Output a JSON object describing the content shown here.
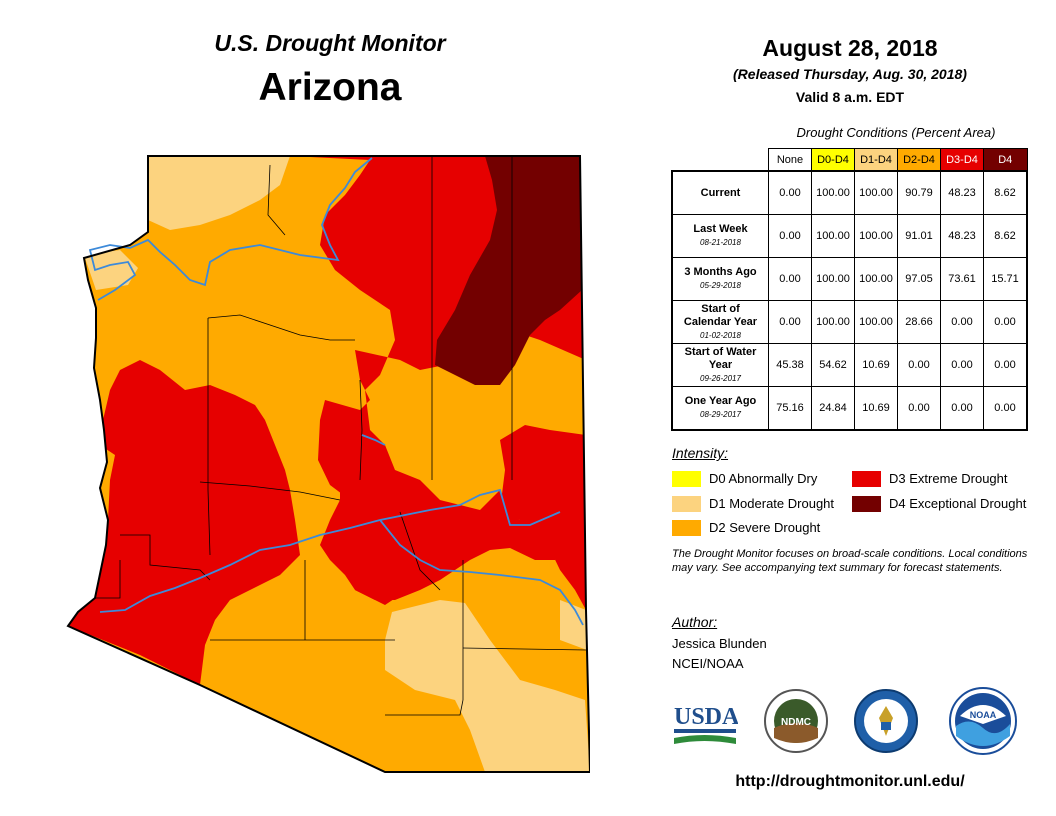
{
  "header": {
    "title": "U.S. Drought Monitor",
    "state": "Arizona",
    "date": "August 28, 2018",
    "released": "(Released Thursday, Aug. 30, 2018)",
    "valid": "Valid 8 a.m. EDT"
  },
  "table": {
    "title": "Drought Conditions (Percent Area)",
    "columns": [
      {
        "label": "None",
        "color": "#ffffff",
        "text_color": "#000000"
      },
      {
        "label": "D0-D4",
        "color": "#ffff00",
        "text_color": "#000000"
      },
      {
        "label": "D1-D4",
        "color": "#fcd37f",
        "text_color": "#000000"
      },
      {
        "label": "D2-D4",
        "color": "#ffaa00",
        "text_color": "#000000"
      },
      {
        "label": "D3-D4",
        "color": "#e60000",
        "text_color": "#ffffff"
      },
      {
        "label": "D4",
        "color": "#730000",
        "text_color": "#ffffff"
      }
    ],
    "rows": [
      {
        "label": "Current",
        "date": "",
        "values": [
          "0.00",
          "100.00",
          "100.00",
          "90.79",
          "48.23",
          "8.62"
        ]
      },
      {
        "label": "Last Week",
        "date": "08-21-2018",
        "values": [
          "0.00",
          "100.00",
          "100.00",
          "91.01",
          "48.23",
          "8.62"
        ]
      },
      {
        "label": "3 Months Ago",
        "date": "05-29-2018",
        "values": [
          "0.00",
          "100.00",
          "100.00",
          "97.05",
          "73.61",
          "15.71"
        ]
      },
      {
        "label": "Start of Calendar Year",
        "date": "01-02-2018",
        "values": [
          "0.00",
          "100.00",
          "100.00",
          "28.66",
          "0.00",
          "0.00"
        ]
      },
      {
        "label": "Start of Water Year",
        "date": "09-26-2017",
        "values": [
          "45.38",
          "54.62",
          "10.69",
          "0.00",
          "0.00",
          "0.00"
        ]
      },
      {
        "label": "One Year Ago",
        "date": "08-29-2017",
        "values": [
          "75.16",
          "24.84",
          "10.69",
          "0.00",
          "0.00",
          "0.00"
        ]
      }
    ]
  },
  "legend": {
    "title": "Intensity:",
    "items": [
      {
        "label": "D0 Abnormally Dry",
        "color": "#ffff00"
      },
      {
        "label": "D1 Moderate Drought",
        "color": "#fcd37f"
      },
      {
        "label": "D2 Severe Drought",
        "color": "#ffaa00"
      },
      {
        "label": "D3 Extreme Drought",
        "color": "#e60000"
      },
      {
        "label": "D4 Exceptional Drought",
        "color": "#730000"
      }
    ]
  },
  "note": "The Drought Monitor focuses on broad-scale conditions. Local conditions may vary. See accompanying text summary for forecast statements.",
  "author": {
    "title": "Author:",
    "name": "Jessica Blunden",
    "org": "NCEI/NOAA"
  },
  "logos": {
    "usda": "USDA",
    "ndmc": "NDMC",
    "noaa": "NOAA"
  },
  "url": "http://droughtmonitor.unl.edu/",
  "colors": {
    "river": "#3d8ad9",
    "boundary": "#000000"
  }
}
